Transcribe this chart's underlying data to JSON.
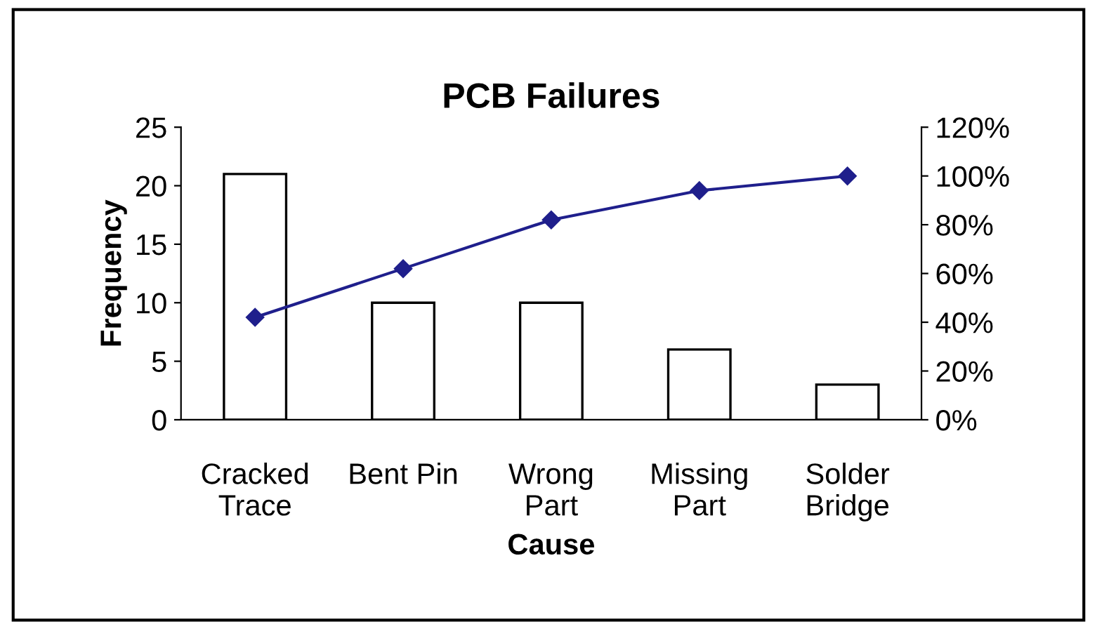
{
  "chart_data": {
    "type": "bar",
    "title": "PCB Failures",
    "xlabel": "Cause",
    "ylabel": "Frequency",
    "categories": [
      "Cracked\nTrace",
      "Bent Pin",
      "Wrong\nPart",
      "Missing\nPart",
      "Solder\nBridge"
    ],
    "series": [
      {
        "color": "#ffffff",
        "values": [
          21,
          10,
          10,
          6,
          3
        ]
      },
      {
        "type": "line",
        "axis": "y2",
        "color": "#1f1f8c",
        "marker": "diamond",
        "line_style": "solid",
        "values": [
          42,
          62,
          82,
          94,
          100
        ]
      }
    ],
    "ylim": [
      0,
      25
    ],
    "yticks": [
      0,
      5,
      10,
      15,
      20,
      25
    ],
    "y2lim": [
      0,
      120
    ],
    "y2ticks": [
      {
        "value": 0,
        "label": "0%"
      },
      {
        "value": 20,
        "label": "20%"
      },
      {
        "value": 40,
        "label": "40%"
      },
      {
        "value": 60,
        "label": "60%"
      },
      {
        "value": 80,
        "label": "80%"
      },
      {
        "value": 100,
        "label": "100%"
      },
      {
        "value": 120,
        "label": "120%"
      }
    ],
    "grid": false
  }
}
